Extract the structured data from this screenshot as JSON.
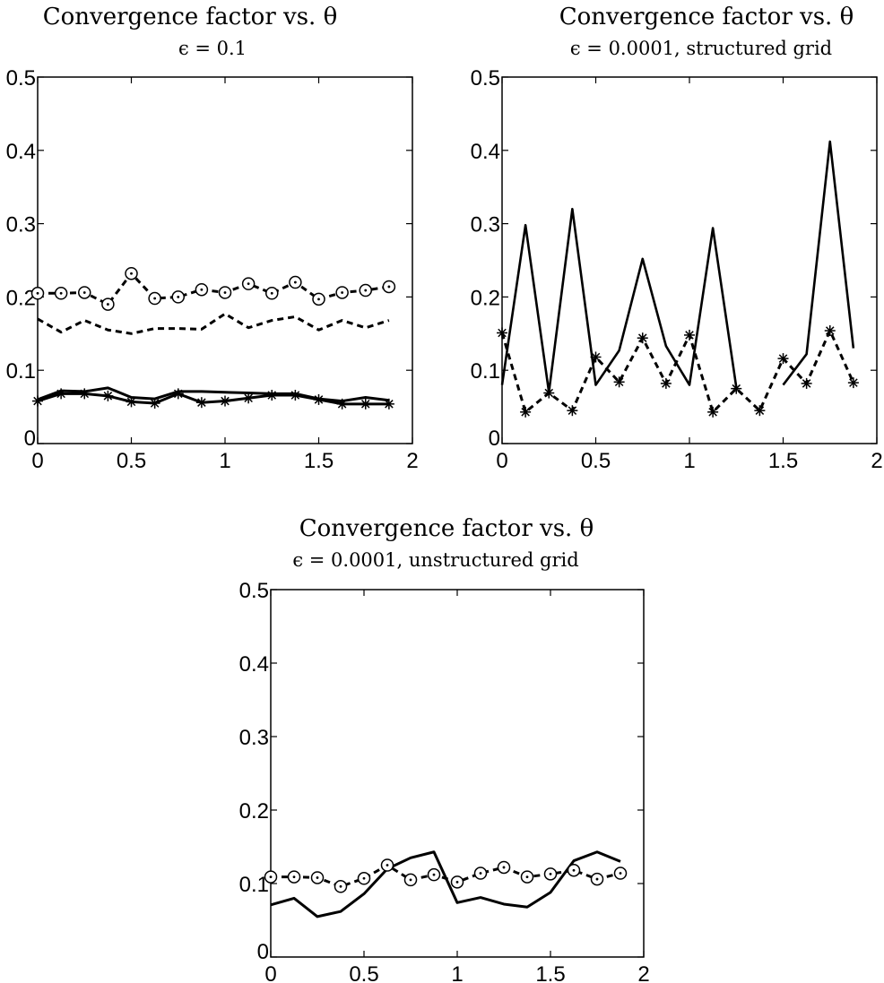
{
  "chart_data": [
    {
      "type": "line",
      "title": "Convergence factor vs. θ",
      "subtitle": "ϵ = 0.1",
      "xlim": [
        0,
        2
      ],
      "ylim": [
        0,
        0.5
      ],
      "xticks": [
        0,
        0.5,
        1,
        1.5,
        2
      ],
      "xtick_labels": [
        "0",
        "0.5",
        "1",
        "1.5",
        "2"
      ],
      "yticks": [
        0,
        0.1,
        0.2,
        0.3,
        0.4,
        0.5
      ],
      "ytick_labels": [
        "0",
        "0.1",
        "0.2",
        "0.3",
        "0.4",
        "0.5"
      ],
      "grid": false,
      "x": [
        0,
        0.125,
        0.25,
        0.375,
        0.5,
        0.625,
        0.75,
        0.875,
        1,
        1.125,
        1.25,
        1.375,
        1.5,
        1.625,
        1.75,
        1.875
      ],
      "series": [
        {
          "style": "dashed",
          "marker": "circle",
          "values": [
            0.205,
            0.205,
            0.206,
            0.19,
            0.232,
            0.198,
            0.2,
            0.21,
            0.206,
            0.218,
            0.205,
            0.22,
            0.197,
            0.206,
            0.209,
            0.214
          ]
        },
        {
          "style": "dashed",
          "marker": "none",
          "values": [
            0.17,
            0.152,
            0.168,
            0.155,
            0.15,
            0.157,
            0.157,
            0.156,
            0.177,
            0.158,
            0.168,
            0.173,
            0.155,
            0.168,
            0.158,
            0.168
          ]
        },
        {
          "style": "solid",
          "marker": "none",
          "values": [
            0.06,
            0.072,
            0.071,
            0.076,
            0.063,
            0.061,
            0.071,
            0.071,
            0.07,
            0.069,
            0.068,
            0.068,
            0.061,
            0.058,
            0.063,
            0.059
          ]
        },
        {
          "style": "solid",
          "marker": "star",
          "values": [
            0.058,
            0.068,
            0.068,
            0.065,
            0.057,
            0.055,
            0.068,
            0.056,
            0.058,
            0.062,
            0.066,
            0.066,
            0.06,
            0.054,
            0.054,
            0.054
          ]
        }
      ]
    },
    {
      "type": "line",
      "title": "Convergence factor vs. θ",
      "subtitle": "ϵ = 0.0001, structured grid",
      "xlim": [
        0,
        2
      ],
      "ylim": [
        0,
        0.5
      ],
      "xticks": [
        0,
        0.5,
        1,
        1.5,
        2
      ],
      "xtick_labels": [
        "0",
        "0.5",
        "1",
        "1.5",
        "2"
      ],
      "yticks": [
        0,
        0.1,
        0.2,
        0.3,
        0.4,
        0.5
      ],
      "ytick_labels": [
        "0",
        "0.1",
        "0.2",
        "0.3",
        "0.4",
        "0.5"
      ],
      "grid": false,
      "x": [
        0,
        0.125,
        0.25,
        0.375,
        0.5,
        0.625,
        0.75,
        0.875,
        1,
        1.125,
        1.25,
        1.375,
        1.5,
        1.625,
        1.75,
        1.875
      ],
      "series": [
        {
          "style": "solid-thin",
          "marker": "none",
          "values": [
            0.08,
            0.298,
            0.07,
            0.32,
            0.08,
            0.127,
            0.252,
            0.133,
            0.08,
            0.294,
            0.077,
            null,
            0.08,
            0.122,
            0.412,
            0.13
          ]
        },
        {
          "style": "dashed",
          "marker": "star",
          "values": [
            0.151,
            0.043,
            0.069,
            0.045,
            0.118,
            0.084,
            0.144,
            0.082,
            0.148,
            0.043,
            0.075,
            0.045,
            0.116,
            0.082,
            0.154,
            0.083
          ]
        }
      ]
    },
    {
      "type": "line",
      "title": "Convergence factor vs. θ",
      "subtitle": "ϵ = 0.0001, unstructured grid",
      "xlim": [
        0,
        2
      ],
      "ylim": [
        0,
        0.5
      ],
      "xticks": [
        0,
        0.5,
        1,
        1.5,
        2
      ],
      "xtick_labels": [
        "0",
        "0.5",
        "1",
        "1.5",
        "2"
      ],
      "yticks": [
        0,
        0.1,
        0.2,
        0.3,
        0.4,
        0.5
      ],
      "ytick_labels": [
        "0",
        "0.1",
        "0.2",
        "0.3",
        "0.4",
        "0.5"
      ],
      "grid": false,
      "x": [
        0,
        0.125,
        0.25,
        0.375,
        0.5,
        0.625,
        0.75,
        0.875,
        1,
        1.125,
        1.25,
        1.375,
        1.5,
        1.625,
        1.75,
        1.875
      ],
      "series": [
        {
          "style": "solid",
          "marker": "none",
          "values": [
            0.071,
            0.08,
            0.055,
            0.062,
            0.086,
            0.12,
            0.135,
            0.143,
            0.074,
            0.081,
            0.072,
            0.068,
            0.088,
            0.131,
            0.143,
            0.13
          ]
        },
        {
          "style": "dashed",
          "marker": "circle",
          "values": [
            0.109,
            0.109,
            0.108,
            0.096,
            0.107,
            0.125,
            0.105,
            0.112,
            0.102,
            0.114,
            0.122,
            0.109,
            0.113,
            0.118,
            0.106,
            0.114
          ]
        }
      ]
    }
  ]
}
